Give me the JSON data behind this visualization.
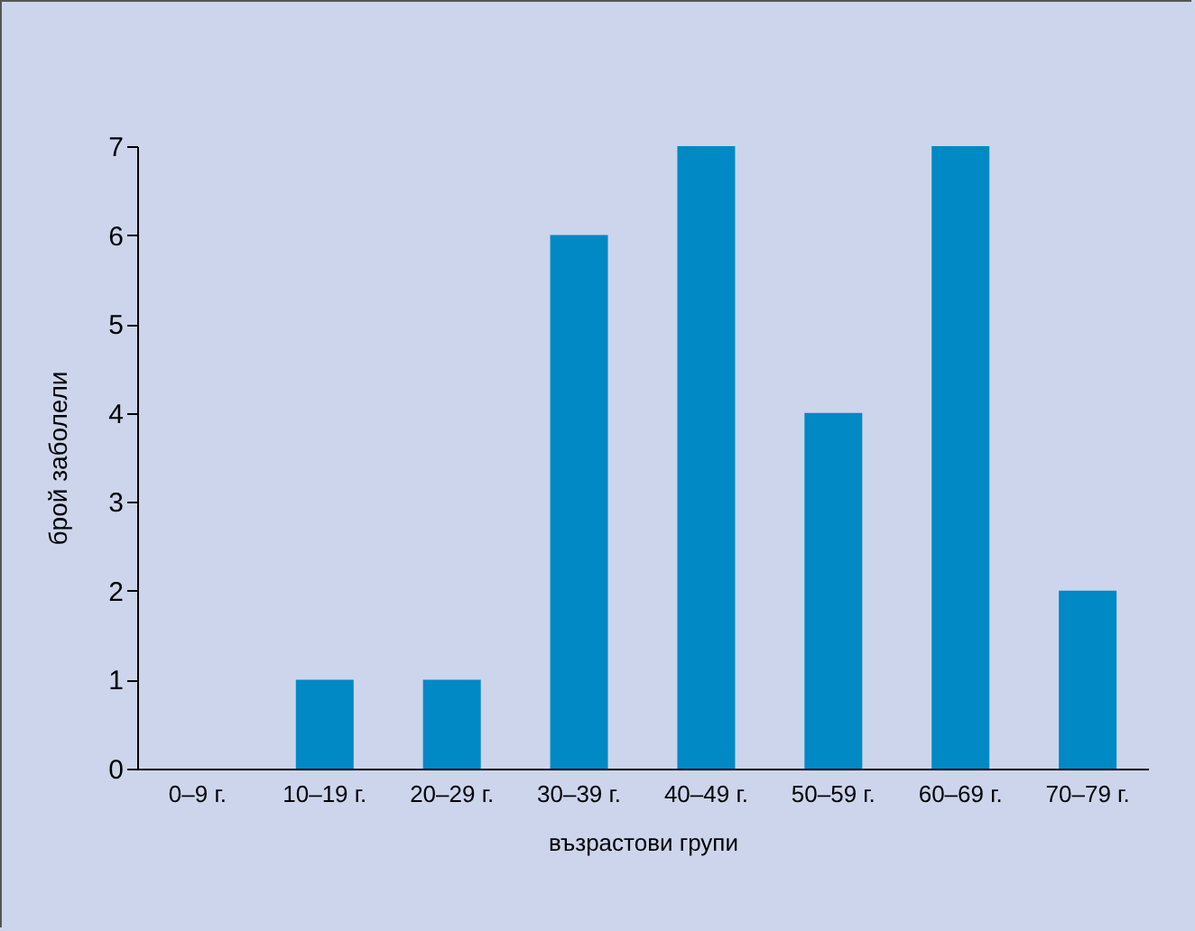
{
  "chart_data": {
    "type": "bar",
    "xlabel": "възрастови групи",
    "ylabel": "брой заболели",
    "categories": [
      "0–9 г.",
      "10–19 г.",
      "20–29 г.",
      "30–39 г.",
      "40–49 г.",
      "50–59 г.",
      "60–69 г.",
      "70–79 г."
    ],
    "values": [
      0,
      1,
      1,
      6,
      7,
      4,
      7,
      2
    ],
    "color": "#0089c4",
    "ylim": [
      0,
      7
    ],
    "yticks": [
      0,
      1,
      2,
      3,
      4,
      5,
      6,
      7
    ],
    "grid": false
  }
}
